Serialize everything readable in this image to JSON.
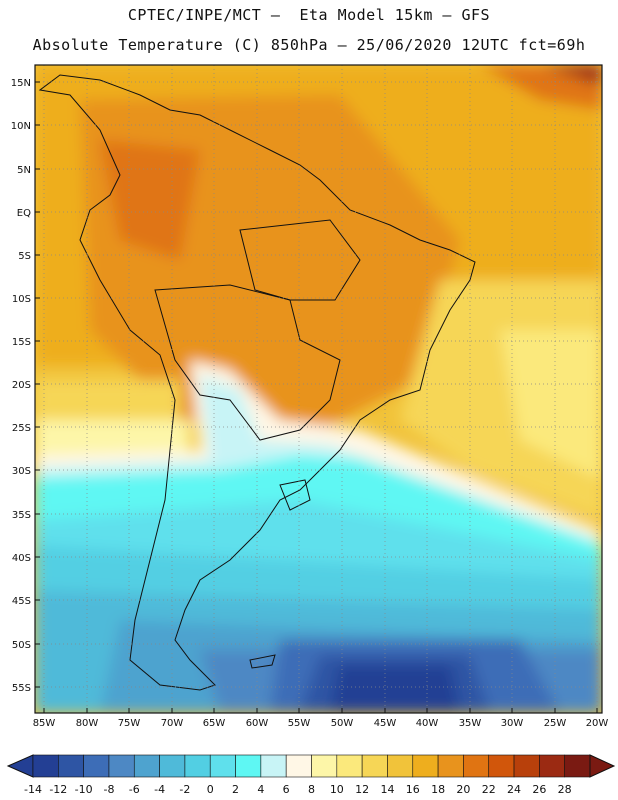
{
  "title_line1": "CPTEC/INPE/MCT –  Eta Model 15km – GFS",
  "title_line2": "Absolute Temperature (C) 850hPa – 25/06/2020 12UTC fct=69h",
  "lat_labels": [
    "15N",
    "10N",
    "5N",
    "EQ",
    "5S",
    "10S",
    "15S",
    "20S",
    "25S",
    "30S",
    "35S",
    "40S",
    "45S",
    "50S",
    "55S"
  ],
  "lon_labels": [
    "85W",
    "80W",
    "75W",
    "70W",
    "65W",
    "60W",
    "55W",
    "50W",
    "45W",
    "40W",
    "35W",
    "30W",
    "25W",
    "20W"
  ],
  "colorbar": {
    "labels": [
      "-14",
      "-12",
      "-10",
      "-8",
      "-6",
      "-4",
      "-2",
      "0",
      "2",
      "4",
      "6",
      "8",
      "10",
      "12",
      "14",
      "16",
      "18",
      "20",
      "22",
      "24",
      "26",
      "28"
    ],
    "colors": [
      "#233f94",
      "#2e55a4",
      "#3d6db7",
      "#4d88c4",
      "#4ea3cf",
      "#4fbad9",
      "#52cfe3",
      "#5fe0ec",
      "#5ef7f3",
      "#c8f4f6",
      "#fff7e6",
      "#fdf6a8",
      "#fbe97c",
      "#f6d656",
      "#f1c33a",
      "#eeae1e",
      "#e8931d",
      "#e07412",
      "#d1560b",
      "#b8400b",
      "#9b2a12",
      "#7a1a12"
    ]
  }
}
